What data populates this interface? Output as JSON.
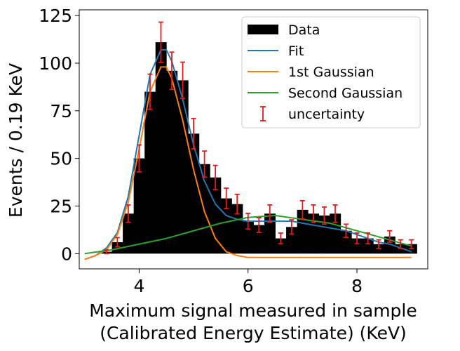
{
  "chart_data": {
    "type": "bar",
    "xlabel_line1": "Maximum signal measured in sample",
    "xlabel_line2": "(Calibrated Energy Estimate) (KeV)",
    "ylabel": "Events / 0.19 KeV",
    "xlim": [
      2.9,
      9.3
    ],
    "ylim": [
      -8,
      128
    ],
    "x_ticks": [
      4,
      6,
      8
    ],
    "y_ticks": [
      0,
      25,
      50,
      75,
      100,
      125
    ],
    "grid": false,
    "legend_placement": "top-right",
    "bin_width": 0.2,
    "histogram": {
      "name": "Data",
      "color": "#000000",
      "bins": [
        {
          "x": 3.4,
          "count": 1
        },
        {
          "x": 3.6,
          "count": 6
        },
        {
          "x": 3.8,
          "count": 21
        },
        {
          "x": 4.0,
          "count": 50
        },
        {
          "x": 4.2,
          "count": 85
        },
        {
          "x": 4.4,
          "count": 111
        },
        {
          "x": 4.6,
          "count": 96
        },
        {
          "x": 4.8,
          "count": 91
        },
        {
          "x": 5.0,
          "count": 63
        },
        {
          "x": 5.2,
          "count": 47
        },
        {
          "x": 5.4,
          "count": 40
        },
        {
          "x": 5.6,
          "count": 29
        },
        {
          "x": 5.8,
          "count": 26
        },
        {
          "x": 6.0,
          "count": 17
        },
        {
          "x": 6.2,
          "count": 15
        },
        {
          "x": 6.4,
          "count": 21
        },
        {
          "x": 6.6,
          "count": 8
        },
        {
          "x": 6.8,
          "count": 14
        },
        {
          "x": 7.0,
          "count": 23
        },
        {
          "x": 7.2,
          "count": 21
        },
        {
          "x": 7.4,
          "count": 20
        },
        {
          "x": 7.6,
          "count": 21
        },
        {
          "x": 7.8,
          "count": 12
        },
        {
          "x": 8.0,
          "count": 8
        },
        {
          "x": 8.2,
          "count": 8
        },
        {
          "x": 8.4,
          "count": 5
        },
        {
          "x": 8.6,
          "count": 9
        },
        {
          "x": 8.8,
          "count": 5
        },
        {
          "x": 9.0,
          "count": 5
        }
      ]
    },
    "uncertainty": {
      "name": "uncertainty",
      "color": "#e6191b"
    },
    "curves": [
      {
        "name": "Fit",
        "color": "#1f77b4",
        "x": [
          3.0,
          3.2,
          3.4,
          3.6,
          3.8,
          4.0,
          4.2,
          4.4,
          4.5,
          4.6,
          4.8,
          5.0,
          5.2,
          5.4,
          5.6,
          5.8,
          6.0,
          6.2,
          6.4,
          6.6,
          6.8,
          7.0,
          7.2,
          7.4,
          7.6,
          7.8,
          8.0,
          8.2,
          8.4,
          8.6,
          8.8,
          9.0
        ],
        "y": [
          -3,
          -1,
          3,
          11,
          30,
          62,
          94,
          107,
          107,
          101,
          81,
          57,
          38,
          26,
          20,
          18,
          17,
          17,
          17,
          17,
          17,
          16,
          15,
          14,
          13,
          12,
          10,
          8,
          6,
          5,
          3,
          1
        ]
      },
      {
        "name": "1st Gaussian",
        "color": "#ff7f0e",
        "x": [
          3.0,
          3.2,
          3.4,
          3.6,
          3.8,
          4.0,
          4.2,
          4.4,
          4.5,
          4.6,
          4.8,
          5.0,
          5.2,
          5.4,
          5.6,
          5.8,
          6.0,
          6.2,
          6.5,
          7.0,
          8.0,
          9.0
        ],
        "y": [
          -3,
          -1,
          2,
          10,
          27,
          55,
          85,
          98,
          98,
          92,
          70,
          44,
          22,
          8,
          1,
          -1,
          -2,
          -2,
          -2,
          -2,
          -2,
          -2
        ]
      },
      {
        "name": "Second Gaussian",
        "color": "#2ca02c",
        "x": [
          3.0,
          3.5,
          4.0,
          4.5,
          5.0,
          5.5,
          6.0,
          6.5,
          7.0,
          7.5,
          8.0,
          8.5,
          9.0
        ],
        "y": [
          0,
          2,
          5,
          8,
          12,
          16,
          19,
          20,
          18,
          16,
          12,
          8,
          4
        ]
      }
    ],
    "legend": [
      {
        "label": "Data",
        "kind": "patch",
        "color": "#000000"
      },
      {
        "label": "Fit",
        "kind": "line",
        "color": "#1f77b4"
      },
      {
        "label": "1st Gaussian",
        "kind": "line",
        "color": "#ff7f0e"
      },
      {
        "label": "Second Gaussian",
        "kind": "line",
        "color": "#2ca02c"
      },
      {
        "label": "uncertainty",
        "kind": "errorbar",
        "color": "#e6191b"
      }
    ]
  }
}
